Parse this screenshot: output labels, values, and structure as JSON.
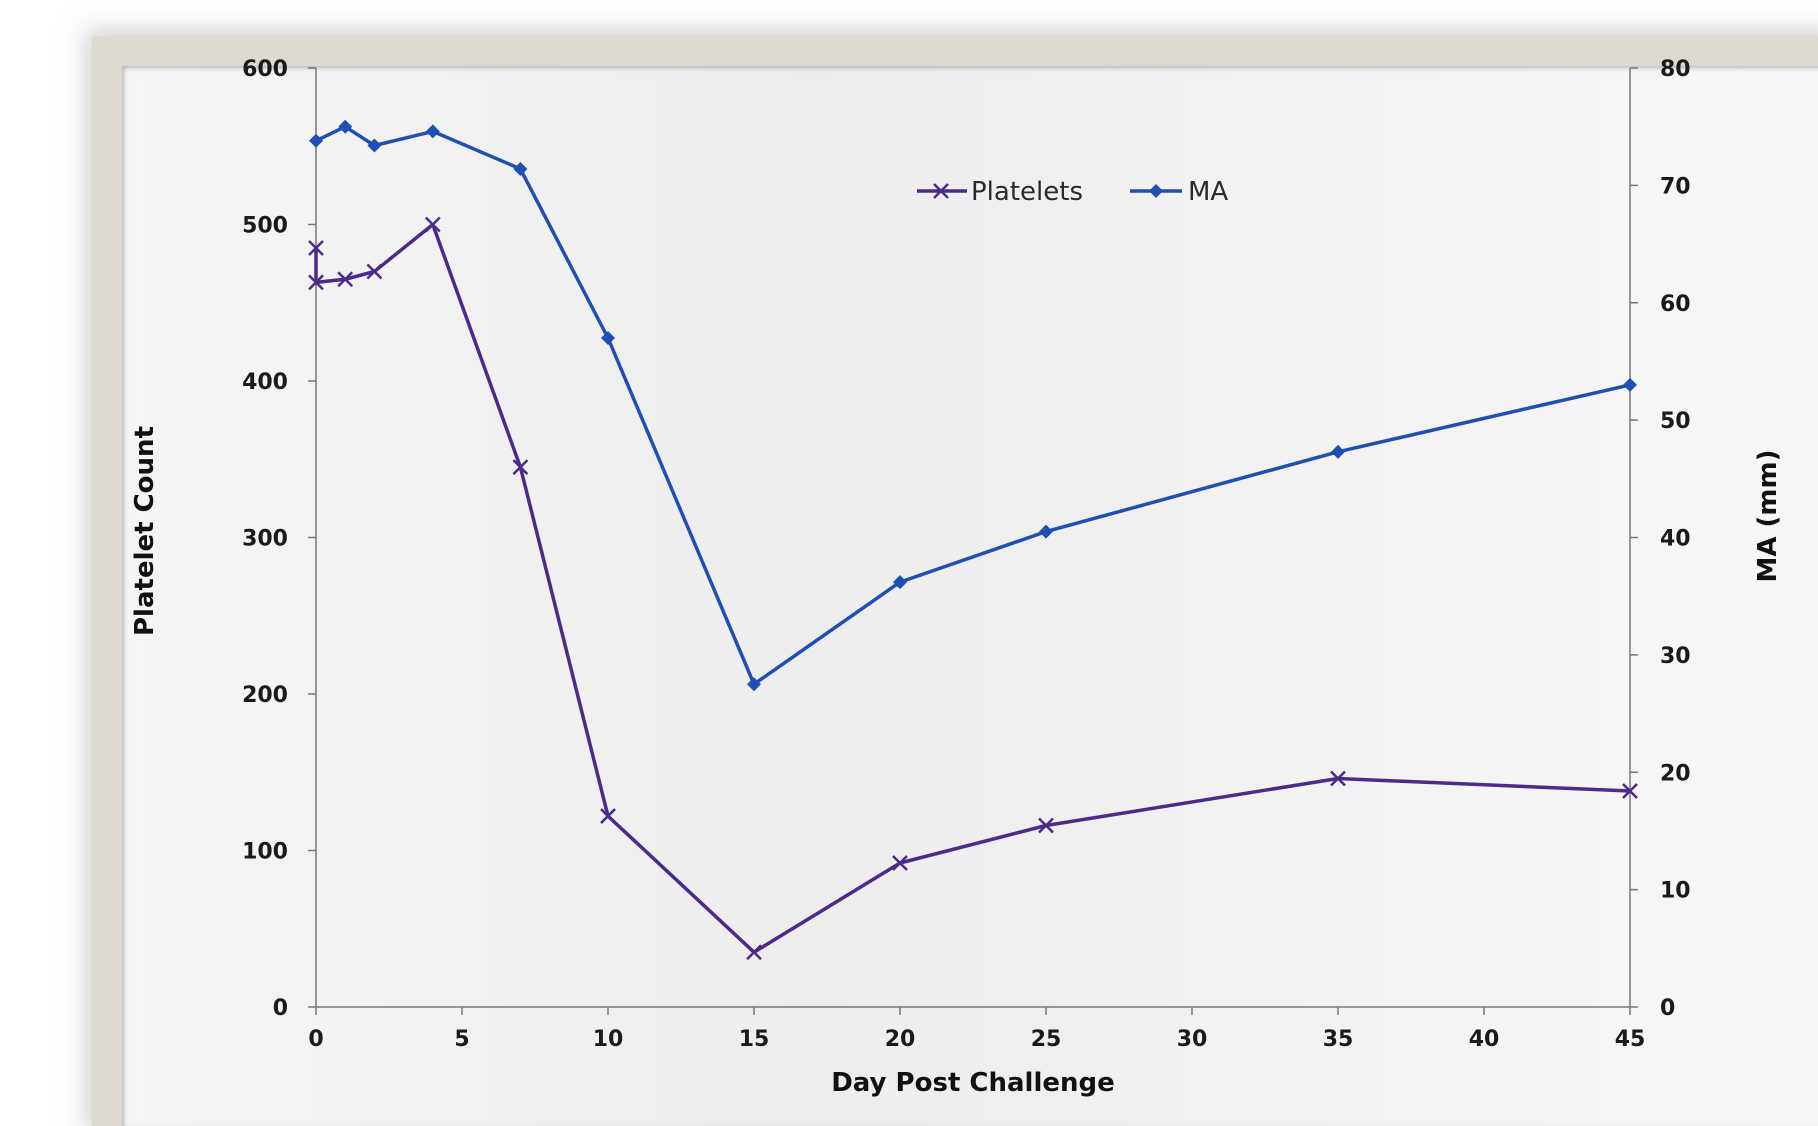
{
  "chart_data": {
    "type": "line",
    "title": "",
    "xlabel": "Day Post Challenge",
    "ylabel": "Platelet Count",
    "y2label": "MA (mm)",
    "xlim": [
      0,
      45
    ],
    "ylim": [
      0,
      600
    ],
    "y2lim": [
      0,
      80
    ],
    "x_ticks": [
      0,
      5,
      10,
      15,
      20,
      25,
      30,
      35,
      40,
      45
    ],
    "y_ticks": [
      0,
      100,
      200,
      300,
      400,
      500,
      600
    ],
    "y2_ticks": [
      0,
      10,
      20,
      30,
      40,
      50,
      60,
      70,
      80
    ],
    "grid": false,
    "legend_position": "top-center",
    "series": [
      {
        "name": "Platelets",
        "axis": "left",
        "color": "#4b2a8a",
        "marker": "x-cross",
        "points": [
          [
            0,
            485
          ],
          [
            0,
            463
          ],
          [
            1,
            465
          ],
          [
            2,
            470
          ],
          [
            4,
            500
          ],
          [
            7,
            345
          ],
          [
            10,
            122
          ],
          [
            15,
            35
          ],
          [
            20,
            92
          ],
          [
            25,
            116
          ],
          [
            35,
            146
          ],
          [
            45,
            138
          ]
        ]
      },
      {
        "name": "MA",
        "axis": "right",
        "color": "#1f4fb3",
        "marker": "diamond",
        "points": [
          [
            0,
            73.8
          ],
          [
            1,
            75
          ],
          [
            2,
            73.4
          ],
          [
            4,
            74.6
          ],
          [
            7,
            71.4
          ],
          [
            10,
            57
          ],
          [
            15,
            27.5
          ],
          [
            20,
            36.2
          ],
          [
            25,
            40.5
          ],
          [
            35,
            47.3
          ],
          [
            45,
            53
          ]
        ]
      }
    ]
  }
}
